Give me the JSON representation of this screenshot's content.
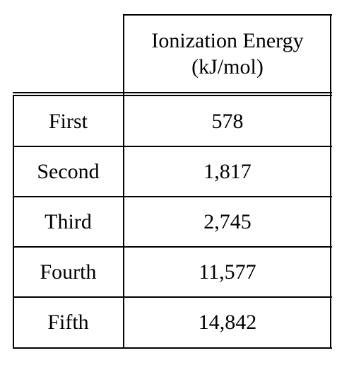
{
  "header": {
    "line1": "Ionization Energy",
    "line2": "(kJ/mol)"
  },
  "rows": [
    {
      "label": "First",
      "value": "578"
    },
    {
      "label": "Second",
      "value": "1,817"
    },
    {
      "label": "Third",
      "value": "2,745"
    },
    {
      "label": "Fourth",
      "value": "11,577"
    },
    {
      "label": "Fifth",
      "value": "14,842"
    }
  ]
}
